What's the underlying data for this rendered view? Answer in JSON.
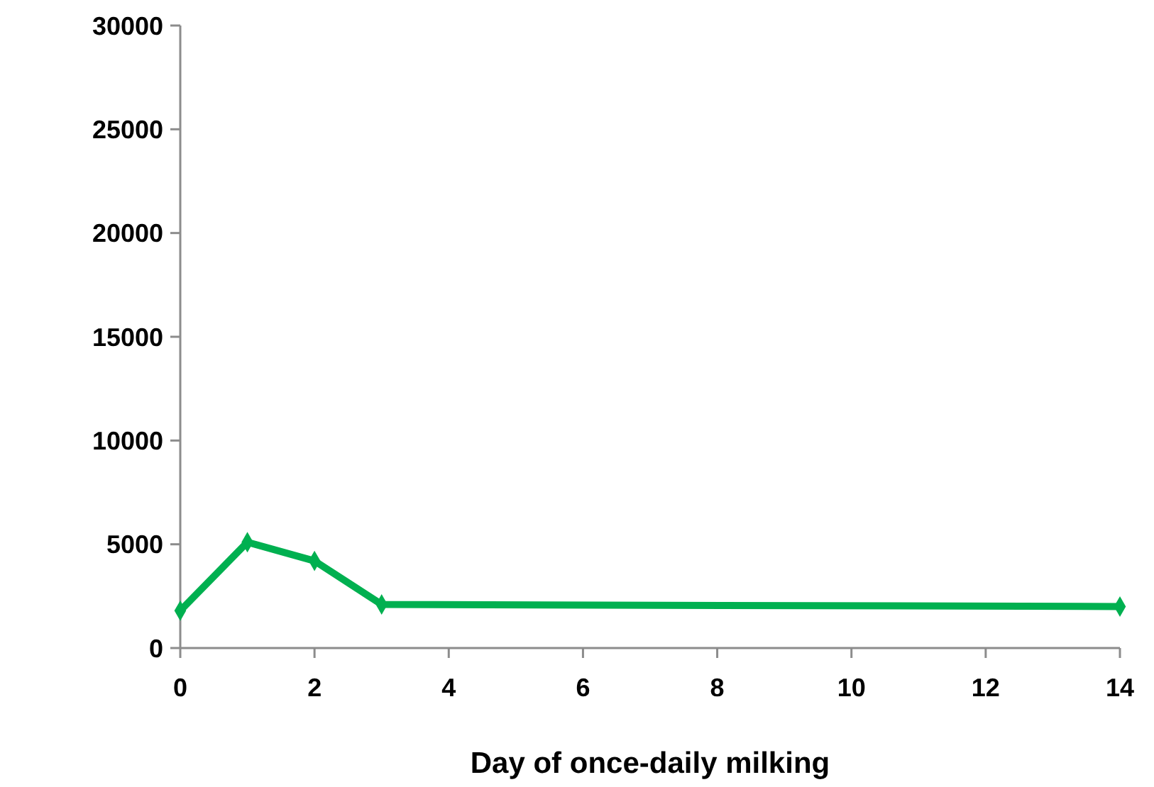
{
  "chart_data": {
    "type": "line",
    "xlabel": "Day of once-daily milking",
    "x": [
      0,
      1,
      2,
      3,
      14
    ],
    "series": [
      {
        "color": "#00b050",
        "values": [
          1800,
          5100,
          4200,
          2100,
          2000
        ]
      }
    ],
    "xlim": [
      0,
      14
    ],
    "xticks": [
      0,
      2,
      4,
      6,
      8,
      10,
      12,
      14
    ],
    "ylim": [
      0,
      30000
    ],
    "yticks": [
      0,
      5000,
      10000,
      15000,
      20000,
      25000,
      30000
    ],
    "grid": false,
    "marker": "diamond",
    "line_style": "solid"
  }
}
